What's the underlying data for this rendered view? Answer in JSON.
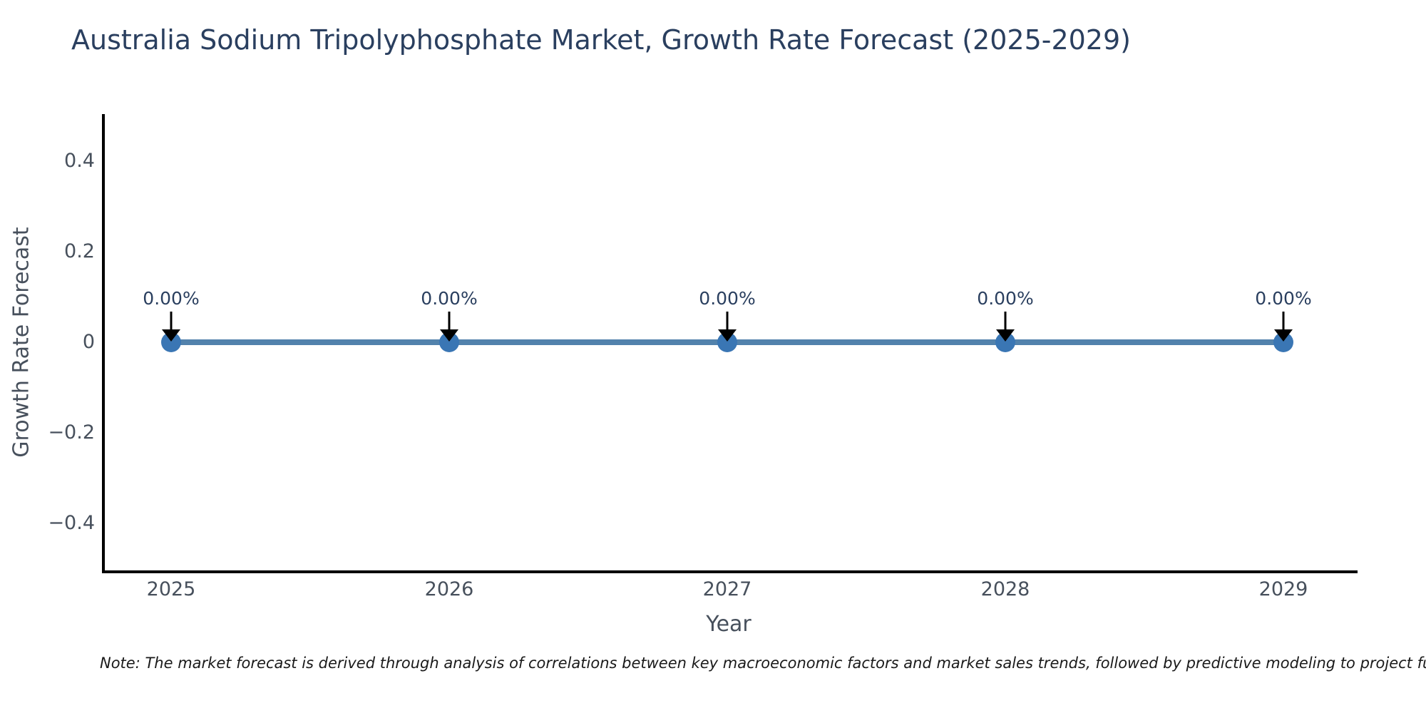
{
  "title": "Australia Sodium Tripolyphosphate Market, Growth Rate Forecast (2025-2029)",
  "note": "Note: The market forecast is derived through analysis of correlations between key macroeconomic factors and market sales trends, followed by predictive modeling to project future sa",
  "chart_data": {
    "type": "line",
    "title": "Australia Sodium Tripolyphosphate Market, Growth Rate Forecast (2025-2029)",
    "xlabel": "Year",
    "ylabel": "Growth Rate Forecast",
    "x": [
      2025,
      2026,
      2027,
      2028,
      2029
    ],
    "series": [
      {
        "name": "Growth Rate Forecast",
        "values": [
          0,
          0,
          0,
          0,
          0
        ]
      }
    ],
    "point_labels": [
      "0.00%",
      "0.00%",
      "0.00%",
      "0.00%",
      "0.00%"
    ],
    "xticks": [
      "2025",
      "2026",
      "2027",
      "2028",
      "2029"
    ],
    "yticks": [
      "0.4",
      "0.2",
      "0",
      "−0.2",
      "−0.4"
    ],
    "ytick_values": [
      0.4,
      0.2,
      0,
      -0.2,
      -0.4
    ],
    "ylim": [
      -0.5,
      0.5
    ],
    "grid": false,
    "legend_position": "none",
    "annotation_style": "black-down-arrow",
    "colors": {
      "line": "#5282AC",
      "marker": "#3A76B4",
      "arrow": "#000000",
      "title": "#2a3f5f",
      "tick_text": "#47505c",
      "axis": "#000000",
      "note_text": "#1a1a1a",
      "background": "#ffffff"
    }
  }
}
